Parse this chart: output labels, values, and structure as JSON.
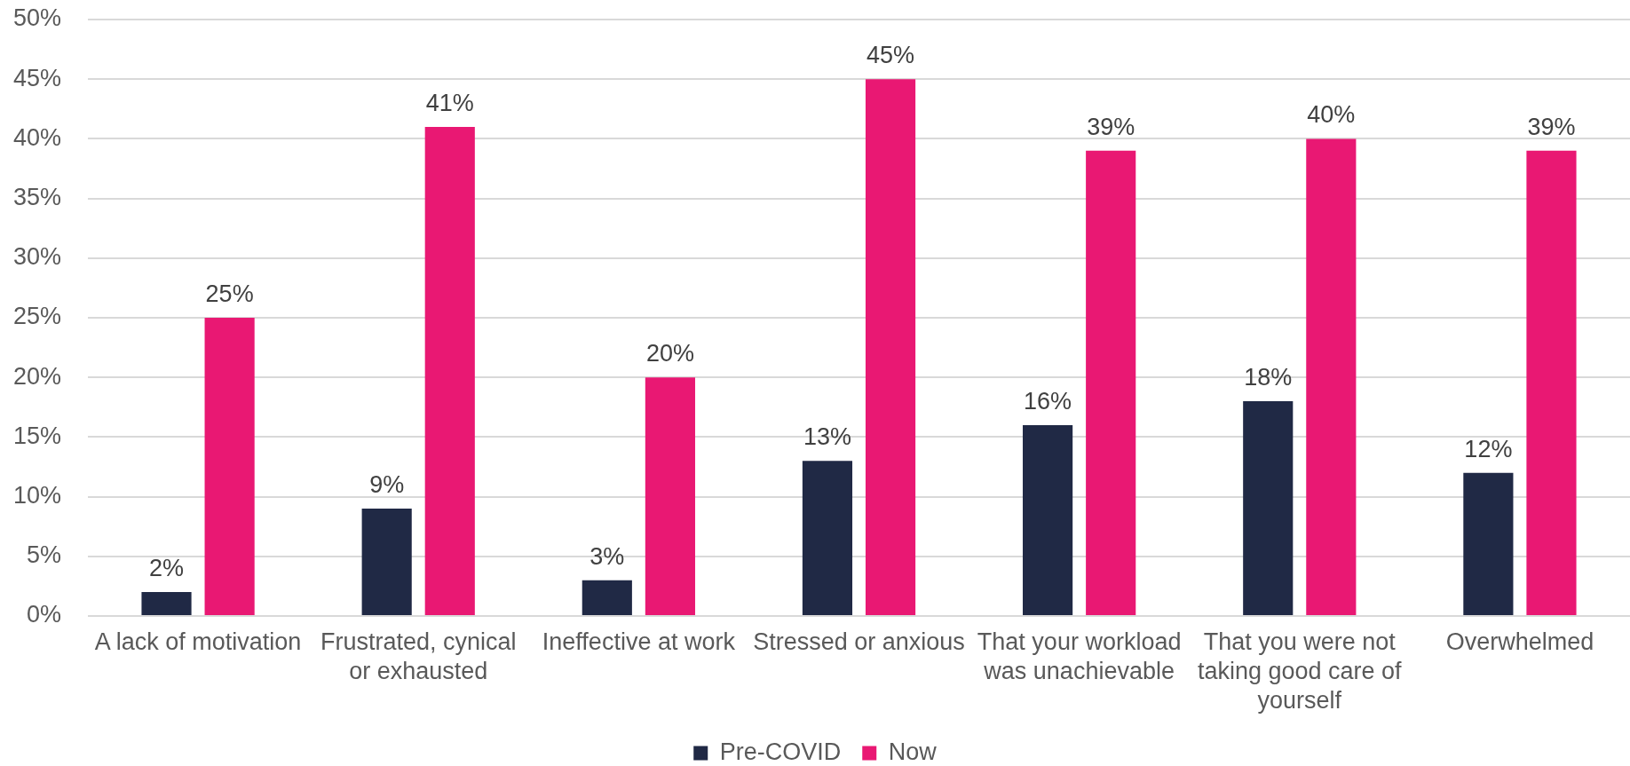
{
  "chart_data": {
    "type": "bar",
    "categories": [
      "A lack of motivation",
      "Frustrated, cynical or exhausted",
      "Ineffective at work",
      "Stressed or anxious",
      "That your workload was unachievable",
      "That you were not taking good care of yourself",
      "Overwhelmed"
    ],
    "series": [
      {
        "name": "Pre-COVID",
        "color": "#202945",
        "values": [
          2,
          9,
          3,
          13,
          16,
          18,
          12
        ],
        "value_labels": [
          "2%",
          "9%",
          "3%",
          "13%",
          "16%",
          "18%",
          "12%"
        ]
      },
      {
        "name": "Now",
        "color": "#e91873",
        "values": [
          25,
          41,
          20,
          45,
          39,
          40,
          39
        ],
        "value_labels": [
          "25%",
          "41%",
          "20%",
          "45%",
          "39%",
          "40%",
          "39%"
        ]
      }
    ],
    "ylim": [
      0,
      50
    ],
    "yticks": [
      {
        "value": 0,
        "label": "0%"
      },
      {
        "value": 5,
        "label": "5%"
      },
      {
        "value": 10,
        "label": "10%"
      },
      {
        "value": 15,
        "label": "15%"
      },
      {
        "value": 20,
        "label": "20%"
      },
      {
        "value": 25,
        "label": "25%"
      },
      {
        "value": 30,
        "label": "30%"
      },
      {
        "value": 35,
        "label": "35%"
      },
      {
        "value": 40,
        "label": "40%"
      },
      {
        "value": 45,
        "label": "45%"
      },
      {
        "value": 50,
        "label": "50%"
      }
    ],
    "grid": "y",
    "legend": "bottom"
  }
}
